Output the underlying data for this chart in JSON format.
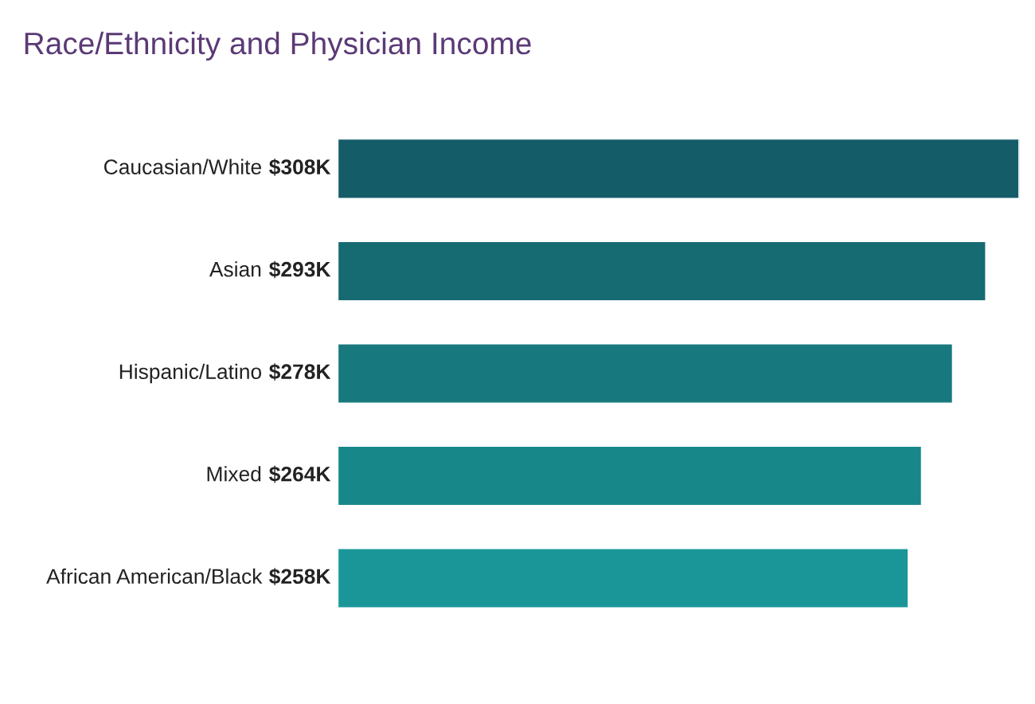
{
  "chart_data": {
    "type": "bar",
    "orientation": "horizontal",
    "title": "Race/Ethnicity and Physician Income",
    "categories": [
      "Caucasian/White",
      "Asian",
      "Hispanic/Latino",
      "Mixed",
      "African American/Black"
    ],
    "values": [
      308,
      293,
      278,
      264,
      258
    ],
    "value_labels": [
      "$308K",
      "$293K",
      "$278K",
      "$264K",
      "$258K"
    ],
    "colors": [
      "#145d68",
      "#166a72",
      "#17787d",
      "#188789",
      "#1a9698"
    ]
  }
}
